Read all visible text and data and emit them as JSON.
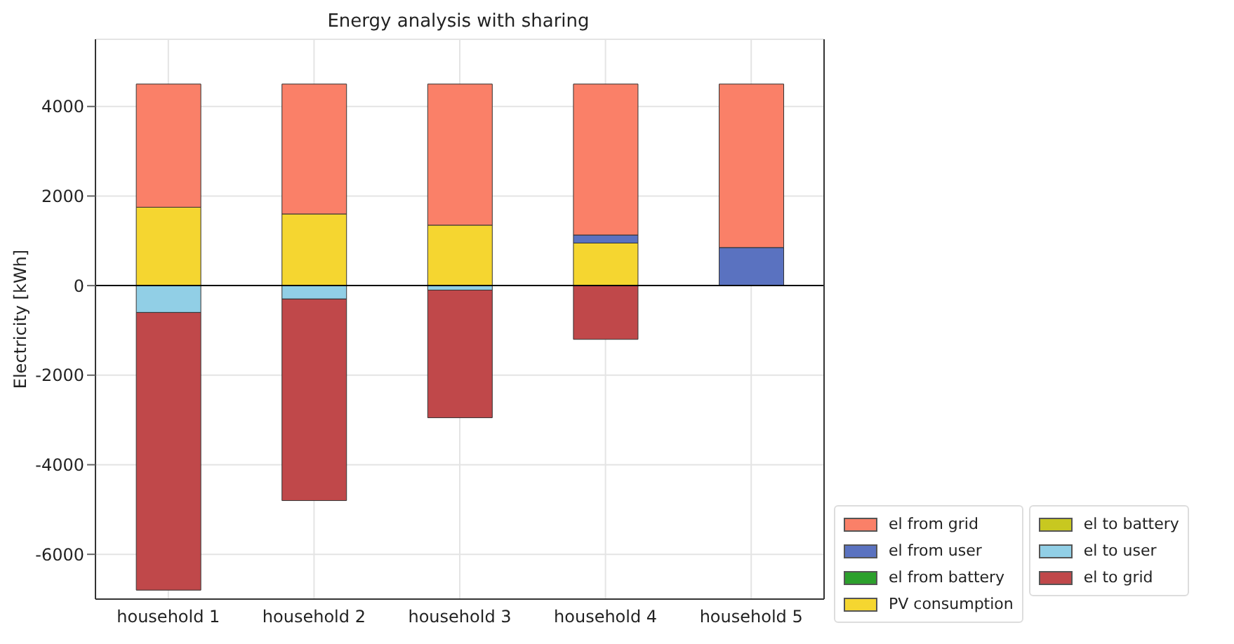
{
  "chart_data": {
    "type": "bar",
    "title": "Energy analysis with sharing",
    "ylabel": "Electricity [kWh]",
    "categories": [
      "household 1",
      "household 2",
      "household 3",
      "household 4",
      "household 5"
    ],
    "stacked": true,
    "series": [
      {
        "name": "PV consumption",
        "color": "#f5d630",
        "values": [
          1750,
          1600,
          1350,
          950,
          0
        ]
      },
      {
        "name": "el from battery",
        "color": "#2ca02c",
        "values": [
          0,
          0,
          0,
          0,
          0
        ]
      },
      {
        "name": "el from user",
        "color": "#5a72c0",
        "values": [
          0,
          0,
          0,
          180,
          850
        ]
      },
      {
        "name": "el from grid",
        "color": "#fa8068",
        "values": [
          2750,
          2900,
          3150,
          3370,
          3650
        ]
      },
      {
        "name": "el to battery",
        "color": "#c8c820",
        "values": [
          0,
          0,
          0,
          0,
          0
        ]
      },
      {
        "name": "el to user",
        "color": "#91cfe6",
        "values": [
          -600,
          -300,
          -100,
          0,
          0
        ]
      },
      {
        "name": "el to grid",
        "color": "#c0484a",
        "values": [
          -6200,
          -4500,
          -2850,
          -1200,
          0
        ]
      }
    ],
    "ylim": [
      -7000,
      5500
    ],
    "yticks": [
      -6000,
      -4000,
      -2000,
      0,
      2000,
      4000
    ],
    "grid": true,
    "legend": "bottom right",
    "ref_lines": [
      {
        "axis": "y",
        "value": 0,
        "color": "#000000"
      }
    ]
  }
}
